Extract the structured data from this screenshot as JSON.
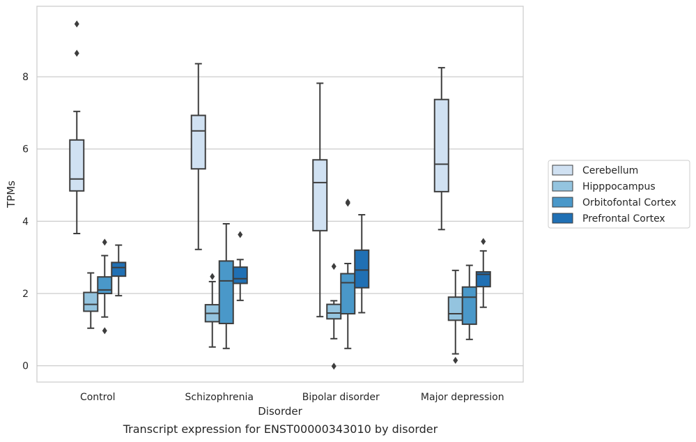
{
  "chart_data": {
    "type": "box",
    "caption": "Transcript expression for ENST00000343010 by disorder",
    "xlabel": "Disorder",
    "ylabel": "TPMs",
    "ylim": [
      -0.45,
      9.95
    ],
    "yticks": [
      0,
      2,
      4,
      6,
      8
    ],
    "grid": true,
    "legend_position": "right",
    "categories": [
      "Control",
      "Schizophrenia",
      "Bipolar disorder",
      "Major depression"
    ],
    "series": [
      {
        "name": "Cerebellum",
        "color": "#d0e1f2",
        "boxes": [
          {
            "whislo": 3.66,
            "q1": 4.84,
            "med": 5.17,
            "q3": 6.25,
            "whishi": 7.04,
            "fliers": [
              8.65,
              9.46
            ]
          },
          {
            "whislo": 3.22,
            "q1": 5.45,
            "med": 6.5,
            "q3": 6.93,
            "whishi": 8.36,
            "fliers": []
          },
          {
            "whislo": 1.36,
            "q1": 3.74,
            "med": 5.07,
            "q3": 5.7,
            "whishi": 7.82,
            "fliers": []
          },
          {
            "whislo": 3.77,
            "q1": 4.82,
            "med": 5.58,
            "q3": 7.37,
            "whishi": 8.25,
            "fliers": []
          }
        ]
      },
      {
        "name": "Hipppocampus",
        "color": "#94c4df",
        "boxes": [
          {
            "whislo": 1.04,
            "q1": 1.51,
            "med": 1.7,
            "q3": 2.03,
            "whishi": 2.57,
            "fliers": []
          },
          {
            "whislo": 0.52,
            "q1": 1.22,
            "med": 1.45,
            "q3": 1.69,
            "whishi": 2.33,
            "fliers": [
              2.47
            ]
          },
          {
            "whislo": 0.75,
            "q1": 1.3,
            "med": 1.46,
            "q3": 1.7,
            "whishi": 1.8,
            "fliers": [
              2.75,
              -0.01
            ]
          },
          {
            "whislo": 0.33,
            "q1": 1.26,
            "med": 1.44,
            "q3": 1.9,
            "whishi": 2.64,
            "fliers": [
              0.15
            ]
          }
        ]
      },
      {
        "name": "Orbitofontal Cortex",
        "color": "#4a98c9",
        "boxes": [
          {
            "whislo": 1.35,
            "q1": 2.0,
            "med": 2.1,
            "q3": 2.46,
            "whishi": 3.05,
            "fliers": [
              3.42,
              0.97
            ]
          },
          {
            "whislo": 0.48,
            "q1": 1.17,
            "med": 2.35,
            "q3": 2.9,
            "whishi": 3.93,
            "fliers": []
          },
          {
            "whislo": 0.48,
            "q1": 1.44,
            "med": 2.3,
            "q3": 2.55,
            "whishi": 2.83,
            "fliers": [
              4.5,
              4.53
            ]
          },
          {
            "whislo": 0.73,
            "q1": 1.15,
            "med": 1.9,
            "q3": 2.18,
            "whishi": 2.78,
            "fliers": []
          }
        ]
      },
      {
        "name": "Prefrontal Cortex",
        "color": "#2070b4",
        "boxes": [
          {
            "whislo": 1.94,
            "q1": 2.48,
            "med": 2.72,
            "q3": 2.86,
            "whishi": 3.34,
            "fliers": []
          },
          {
            "whislo": 1.81,
            "q1": 2.28,
            "med": 2.41,
            "q3": 2.73,
            "whishi": 2.94,
            "fliers": [
              3.63
            ]
          },
          {
            "whislo": 1.47,
            "q1": 2.16,
            "med": 2.65,
            "q3": 3.2,
            "whishi": 4.18,
            "fliers": []
          },
          {
            "whislo": 1.62,
            "q1": 2.19,
            "med": 2.53,
            "q3": 2.6,
            "whishi": 3.18,
            "fliers": [
              3.44
            ]
          }
        ]
      }
    ]
  }
}
